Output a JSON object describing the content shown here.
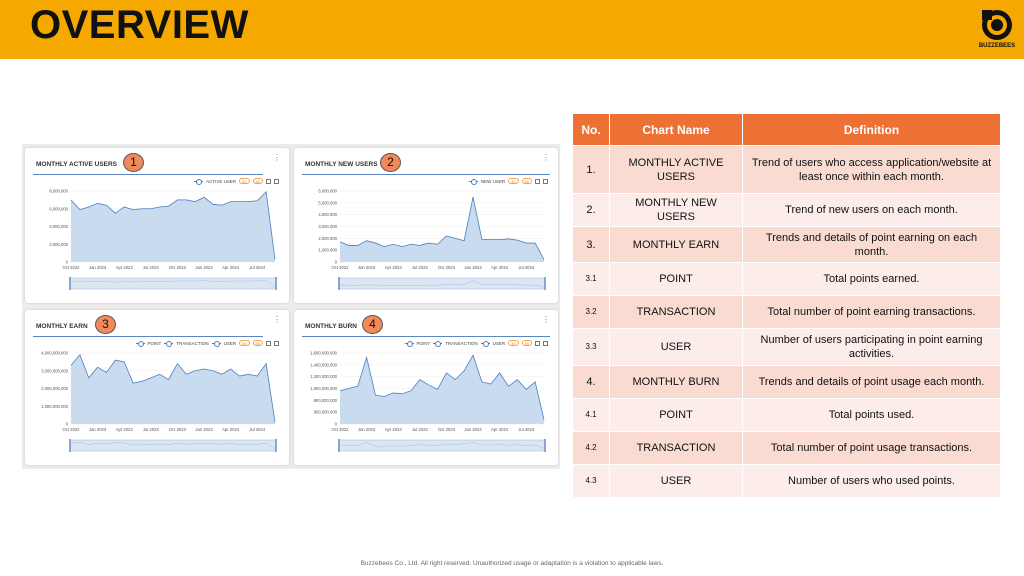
{
  "header": {
    "title": "OVERVIEW",
    "logo_text": "BUZZEBEES"
  },
  "colors": {
    "header_bg": "#f5a800",
    "table_header": "#ed7134",
    "row_odd": "#f9dbd2",
    "row_even": "#fcecea",
    "series": "#4a7fbf",
    "series_fill": "#c9dbef"
  },
  "cards": [
    {
      "title": "MONTHLY ACTIVE USERS",
      "badge": "1",
      "kebab": "⋮",
      "legend": [
        "ACTIVE USER"
      ],
      "pills": [
        "30",
        "50"
      ],
      "y_ticks": [
        "8,000,000",
        "6,000,000",
        "4,000,000",
        "2,000,000",
        "0"
      ],
      "x_ticks": [
        "Oct 2022",
        "Jan 2023",
        "Apr 2023",
        "Jul 2023",
        "Oct 2023",
        "Jan 2024",
        "Apr 2024",
        "Jul 2024"
      ]
    },
    {
      "title": "MONTHLY NEW USERS",
      "badge": "2",
      "kebab": "⋮",
      "legend": [
        "NEW USER"
      ],
      "pills": [
        "30",
        "50"
      ],
      "y_ticks": [
        "6,000,000",
        "5,000,000",
        "4,000,000",
        "3,000,000",
        "2,000,000",
        "1,000,000",
        "0"
      ],
      "x_ticks": [
        "Oct 2022",
        "Jan 2023",
        "Apr 2023",
        "Jul 2023",
        "Oct 2023",
        "Jan 2024",
        "Apr 2024",
        "Jul 2024"
      ]
    },
    {
      "title": "MONTHLY EARN",
      "badge": "3",
      "kebab": "⋮",
      "legend": [
        "POINT",
        "TRANSACTION",
        "USER"
      ],
      "pills": [
        "30",
        "50"
      ],
      "y_ticks": [
        "4,000,000,000",
        "3,000,000,000",
        "2,000,000,000",
        "1,000,000,000",
        "0"
      ],
      "x_ticks": [
        "Oct 2022",
        "Jan 2023",
        "Apr 2023",
        "Jul 2023",
        "Oct 2023",
        "Jan 2024",
        "Apr 2024",
        "Jul 2024"
      ]
    },
    {
      "title": "MONTHLY BURN",
      "badge": "4",
      "kebab": "⋮",
      "legend": [
        "POINT",
        "TRANSACTION",
        "USER"
      ],
      "pills": [
        "30",
        "50"
      ],
      "y_ticks": [
        "1,600,000,000",
        "1,400,000,000",
        "1,200,000,000",
        "1,000,000,000",
        "800,000,000",
        "600,000,000",
        "0"
      ],
      "x_ticks": [
        "Oct 2022",
        "Jan 2023",
        "Apr 2023",
        "Jul 2023",
        "Oct 2023",
        "Jan 2024",
        "Apr 2024",
        "Jul 2024"
      ]
    }
  ],
  "chart_data": [
    {
      "type": "area",
      "title": "MONTHLY ACTIVE USERS",
      "x": [
        "2022-10",
        "2022-11",
        "2022-12",
        "2023-01",
        "2023-02",
        "2023-03",
        "2023-04",
        "2023-05",
        "2023-06",
        "2023-07",
        "2023-08",
        "2023-09",
        "2023-10",
        "2023-11",
        "2023-12",
        "2024-01",
        "2024-02",
        "2024-03",
        "2024-04",
        "2024-05",
        "2024-06",
        "2024-07",
        "2024-08",
        "2024-09"
      ],
      "series": [
        {
          "name": "ACTIVE USER",
          "values": [
            7000000,
            5900000,
            6200000,
            6600000,
            6400000,
            5500000,
            6200000,
            5900000,
            6000000,
            6000000,
            6200000,
            6300000,
            7000000,
            7000000,
            6800000,
            7300000,
            6500000,
            6400000,
            6800000,
            6800000,
            6800000,
            6900000,
            7900000,
            300000
          ]
        }
      ],
      "ylim": [
        0,
        8000000
      ]
    },
    {
      "type": "area",
      "title": "MONTHLY NEW USERS",
      "x": [
        "2022-10",
        "2022-11",
        "2022-12",
        "2023-01",
        "2023-02",
        "2023-03",
        "2023-04",
        "2023-05",
        "2023-06",
        "2023-07",
        "2023-08",
        "2023-09",
        "2023-10",
        "2023-11",
        "2023-12",
        "2024-01",
        "2024-02",
        "2024-03",
        "2024-04",
        "2024-05",
        "2024-06",
        "2024-07",
        "2024-08",
        "2024-09"
      ],
      "series": [
        {
          "name": "NEW USER",
          "values": [
            1700000,
            1400000,
            1400000,
            1800000,
            1600000,
            1300000,
            1500000,
            1300000,
            1500000,
            1400000,
            1600000,
            1500000,
            2200000,
            2000000,
            1800000,
            5500000,
            1900000,
            1900000,
            1900000,
            1950000,
            1850000,
            1600000,
            1600000,
            200000
          ]
        }
      ],
      "ylim": [
        0,
        6000000
      ]
    },
    {
      "type": "area",
      "title": "MONTHLY EARN",
      "x": [
        "2022-10",
        "2022-11",
        "2022-12",
        "2023-01",
        "2023-02",
        "2023-03",
        "2023-04",
        "2023-05",
        "2023-06",
        "2023-07",
        "2023-08",
        "2023-09",
        "2023-10",
        "2023-11",
        "2023-12",
        "2024-01",
        "2024-02",
        "2024-03",
        "2024-04",
        "2024-05",
        "2024-06",
        "2024-07",
        "2024-08",
        "2024-09"
      ],
      "series": [
        {
          "name": "POINT",
          "values": [
            3300000000,
            3900000000,
            2600000000,
            3200000000,
            2900000000,
            3600000000,
            3500000000,
            2300000000,
            2400000000,
            2600000000,
            2800000000,
            2500000000,
            3400000000,
            2800000000,
            3000000000,
            3100000000,
            3000000000,
            2800000000,
            3100000000,
            2700000000,
            2800000000,
            2700000000,
            3400000000,
            100000000
          ]
        }
      ],
      "ylim": [
        0,
        4000000000
      ]
    },
    {
      "type": "area",
      "title": "MONTHLY BURN",
      "x": [
        "2022-10",
        "2022-11",
        "2022-12",
        "2023-01",
        "2023-02",
        "2023-03",
        "2023-04",
        "2023-05",
        "2023-06",
        "2023-07",
        "2023-08",
        "2023-09",
        "2023-10",
        "2023-11",
        "2023-12",
        "2024-01",
        "2024-02",
        "2024-03",
        "2024-04",
        "2024-05",
        "2024-06",
        "2024-07",
        "2024-08",
        "2024-09"
      ],
      "series": [
        {
          "name": "POINT",
          "values": [
            750000000,
            800000000,
            850000000,
            1500000000,
            650000000,
            620000000,
            700000000,
            680000000,
            750000000,
            1000000000,
            880000000,
            780000000,
            1150000000,
            1000000000,
            1200000000,
            1550000000,
            950000000,
            900000000,
            1150000000,
            850000000,
            1000000000,
            780000000,
            950000000,
            100000000
          ]
        }
      ],
      "ylim": [
        0,
        1600000000
      ]
    }
  ],
  "table": {
    "headers": [
      "No.",
      "Chart Name",
      "Definition"
    ],
    "rows": [
      {
        "no": "1.",
        "name": "MONTHLY ACTIVE USERS",
        "definition": "Trend of users who access application/website at least once within each month."
      },
      {
        "no": "2.",
        "name": "MONTHLY NEW USERS",
        "definition": "Trend of new users on each month."
      },
      {
        "no": "3.",
        "name": "MONTHLY EARN",
        "definition": "Trends and details of point earning on each month."
      },
      {
        "no": "3.1",
        "name": "POINT",
        "definition": "Total points earned."
      },
      {
        "no": "3.2",
        "name": "TRANSACTION",
        "definition": "Total number of point earning transactions."
      },
      {
        "no": "3.3",
        "name": "USER",
        "definition": "Number of users participating in point earning activities."
      },
      {
        "no": "4.",
        "name": "MONTHLY BURN",
        "definition": "Trends and details of point usage each month."
      },
      {
        "no": "4.1",
        "name": "POINT",
        "definition": "Total points used."
      },
      {
        "no": "4.2",
        "name": "TRANSACTION",
        "definition": "Total number of point usage transactions."
      },
      {
        "no": "4.3",
        "name": "USER",
        "definition": "Number of users who used points."
      }
    ]
  },
  "footer": "Buzzebees Co., Ltd. All right reserved. Unauthorized usage or adaptation is a violation to applicable laws."
}
